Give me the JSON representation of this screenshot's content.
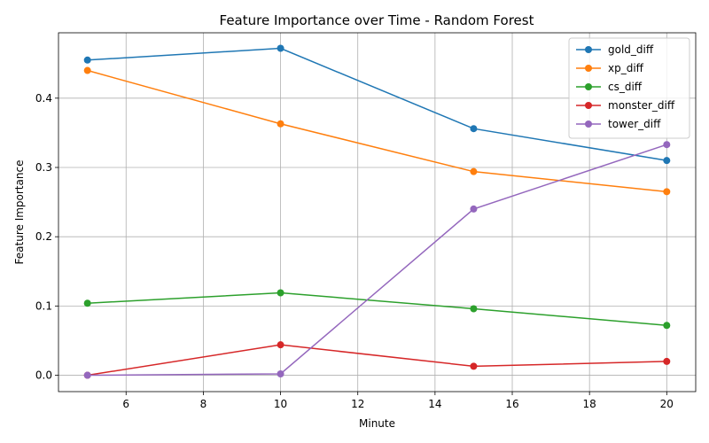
{
  "chart_data": {
    "type": "line",
    "title": "Feature Importance over Time - Random Forest",
    "xlabel": "Minute",
    "ylabel": "Feature Importance",
    "x": [
      5,
      10,
      15,
      20
    ],
    "xlim": [
      4.25,
      20.75
    ],
    "ylim": [
      -0.0236,
      0.4944
    ],
    "xticks": [
      6,
      8,
      10,
      12,
      14,
      16,
      18,
      20
    ],
    "yticks": [
      0.0,
      0.1,
      0.2,
      0.3,
      0.4
    ],
    "xtick_labels": [
      "6",
      "8",
      "10",
      "12",
      "14",
      "16",
      "18",
      "20"
    ],
    "ytick_labels": [
      "0.0",
      "0.1",
      "0.2",
      "0.3",
      "0.4"
    ],
    "grid": true,
    "legend_position": "top-right",
    "series": [
      {
        "name": "gold_diff",
        "color": "#1f77b4",
        "values": [
          0.455,
          0.472,
          0.356,
          0.31
        ]
      },
      {
        "name": "xp_diff",
        "color": "#ff7f0e",
        "values": [
          0.44,
          0.363,
          0.294,
          0.265
        ]
      },
      {
        "name": "cs_diff",
        "color": "#2ca02c",
        "values": [
          0.104,
          0.119,
          0.096,
          0.072
        ]
      },
      {
        "name": "monster_diff",
        "color": "#d62728",
        "values": [
          0.0,
          0.044,
          0.013,
          0.02
        ]
      },
      {
        "name": "tower_diff",
        "color": "#9467bd",
        "values": [
          0.0,
          0.002,
          0.24,
          0.333
        ]
      }
    ]
  }
}
